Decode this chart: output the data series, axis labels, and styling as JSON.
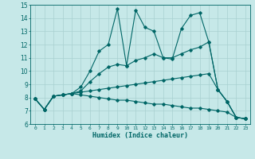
{
  "title": "",
  "xlabel": "Humidex (Indice chaleur)",
  "xlim": [
    -0.5,
    23.5
  ],
  "ylim": [
    6,
    15
  ],
  "xticks": [
    0,
    1,
    2,
    3,
    4,
    5,
    6,
    7,
    8,
    9,
    10,
    11,
    12,
    13,
    14,
    15,
    16,
    17,
    18,
    19,
    20,
    21,
    22,
    23
  ],
  "yticks": [
    6,
    7,
    8,
    9,
    10,
    11,
    12,
    13,
    14,
    15
  ],
  "bg_color": "#c6e8e8",
  "line_color": "#006666",
  "grid_color": "#a8d0d0",
  "series": [
    {
      "x": [
        0,
        1,
        2,
        3,
        4,
        5,
        6,
        7,
        8,
        9,
        10,
        11,
        12,
        13,
        14,
        15,
        16,
        17,
        18,
        19,
        20,
        21,
        22,
        23
      ],
      "y": [
        7.9,
        7.1,
        8.1,
        8.2,
        8.3,
        8.8,
        10.0,
        11.5,
        12.0,
        14.7,
        10.4,
        14.6,
        13.3,
        13.0,
        11.0,
        10.9,
        13.2,
        14.2,
        14.4,
        12.2,
        8.6,
        7.7,
        6.5,
        6.4
      ]
    },
    {
      "x": [
        0,
        1,
        2,
        3,
        4,
        5,
        6,
        7,
        8,
        9,
        10,
        11,
        12,
        13,
        14,
        15,
        16,
        17,
        18,
        19,
        20,
        21,
        22,
        23
      ],
      "y": [
        7.9,
        7.1,
        8.1,
        8.2,
        8.3,
        8.5,
        9.2,
        9.8,
        10.3,
        10.5,
        10.4,
        10.8,
        11.0,
        11.3,
        11.0,
        11.0,
        11.3,
        11.6,
        11.8,
        12.2,
        8.6,
        7.7,
        6.5,
        6.4
      ]
    },
    {
      "x": [
        0,
        1,
        2,
        3,
        4,
        5,
        6,
        7,
        8,
        9,
        10,
        11,
        12,
        13,
        14,
        15,
        16,
        17,
        18,
        19,
        20,
        21,
        22,
        23
      ],
      "y": [
        7.9,
        7.1,
        8.1,
        8.2,
        8.3,
        8.4,
        8.5,
        8.6,
        8.7,
        8.8,
        8.9,
        9.0,
        9.1,
        9.2,
        9.3,
        9.4,
        9.5,
        9.6,
        9.7,
        9.8,
        8.6,
        7.7,
        6.5,
        6.4
      ]
    },
    {
      "x": [
        0,
        1,
        2,
        3,
        4,
        5,
        6,
        7,
        8,
        9,
        10,
        11,
        12,
        13,
        14,
        15,
        16,
        17,
        18,
        19,
        20,
        21,
        22,
        23
      ],
      "y": [
        7.9,
        7.1,
        8.1,
        8.2,
        8.3,
        8.2,
        8.1,
        8.0,
        7.9,
        7.8,
        7.8,
        7.7,
        7.6,
        7.5,
        7.5,
        7.4,
        7.3,
        7.2,
        7.2,
        7.1,
        7.0,
        6.9,
        6.5,
        6.4
      ]
    }
  ]
}
